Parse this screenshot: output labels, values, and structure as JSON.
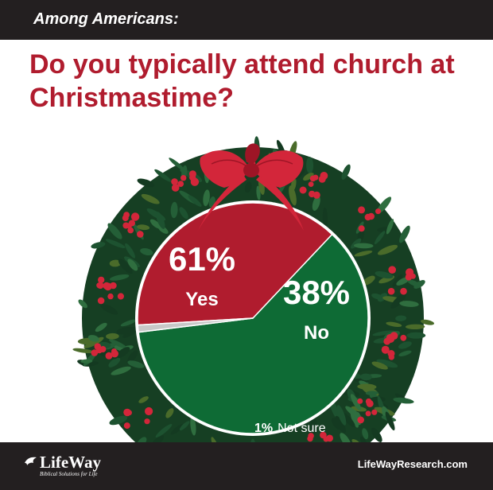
{
  "header": {
    "subtitle": "Among Americans:"
  },
  "title": "Do you typically attend church at Christmastime?",
  "chart_data": {
    "type": "pie",
    "title": "Do you typically attend church at Christmastime?",
    "subtitle": "Among Americans:",
    "slices": [
      {
        "label": "Yes",
        "value": 61,
        "value_label": "61%",
        "color": "#0e6b35"
      },
      {
        "label": "No",
        "value": 38,
        "value_label": "38%",
        "color": "#b01c2e"
      },
      {
        "label": "Not sure",
        "value": 1,
        "value_label": "1%",
        "color": "#c8c8c8"
      }
    ]
  },
  "footer": {
    "logo_text": "LifeWay",
    "logo_tagline": "Biblical Solutions for Life",
    "website": "LifeWayResearch.com"
  },
  "colors": {
    "yes_green": "#0e6b35",
    "no_red": "#b01c2e",
    "wreath_green": "#163f23",
    "berry_red": "#d3263a",
    "bar_black": "#231f20"
  }
}
